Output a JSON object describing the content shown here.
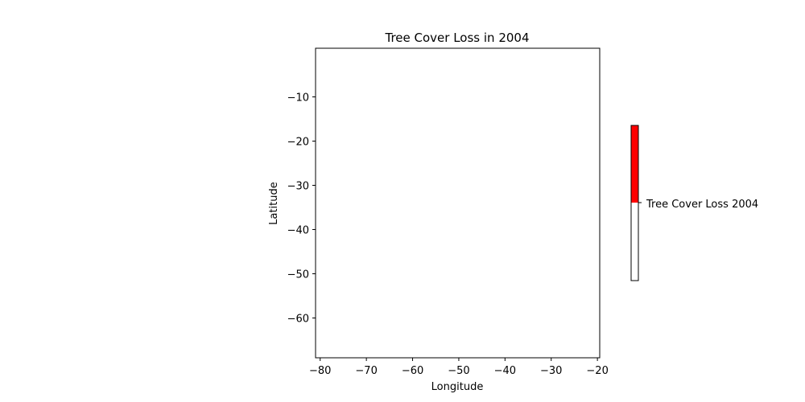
{
  "chart_data": {
    "type": "heatmap",
    "title": "Tree Cover Loss in 2004",
    "xlabel": "Longitude",
    "ylabel": "Latitude",
    "xlim": [
      -81.0,
      -19.5
    ],
    "ylim": [
      -69.0,
      1.0
    ],
    "x_ticks": [
      -80,
      -70,
      -60,
      -50,
      -40,
      -30,
      -20
    ],
    "y_ticks": [
      -10,
      -20,
      -30,
      -40,
      -50,
      -60
    ],
    "grid": false,
    "colorbar": {
      "label": "Tree Cover Loss 2004",
      "colors": [
        "#ffffff",
        "#ff0000"
      ],
      "placement": "right"
    }
  }
}
